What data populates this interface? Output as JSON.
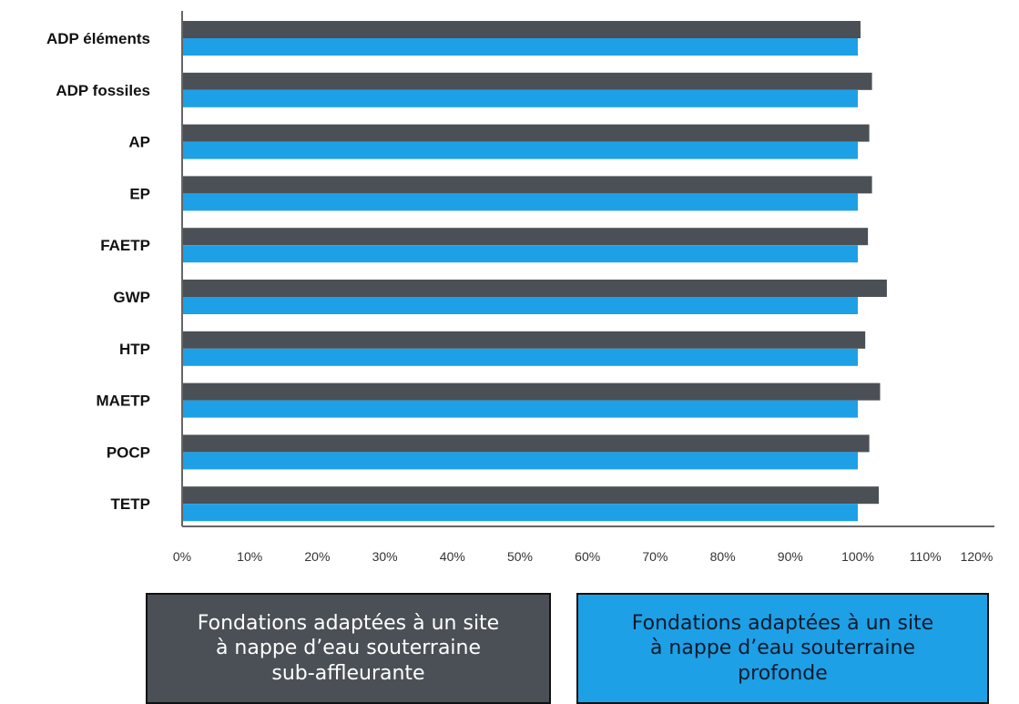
{
  "chart_data": {
    "type": "bar",
    "orientation": "horizontal",
    "categories": [
      "ADP éléments",
      "ADP fossiles",
      "AP",
      "EP",
      "FAETP",
      "GWP",
      "HTP",
      "MAETP",
      "POCP",
      "TETP"
    ],
    "series": [
      {
        "name": "Fondations adaptées à un site\nà nappe d’eau souterraine\nsub-affleurante",
        "color": "#4a5055",
        "values": [
          100.4,
          102.1,
          101.7,
          102.1,
          101.5,
          104.3,
          101.1,
          103.3,
          101.7,
          103.1
        ]
      },
      {
        "name": "Fondations adaptées à un site\nà nappe d’eau souterraine\nprofonde",
        "color": "#1ea0e6",
        "values": [
          100,
          100,
          100,
          100,
          100,
          100,
          100,
          100,
          100,
          100
        ]
      }
    ],
    "xlim": [
      0,
      120
    ],
    "xticks": [
      "0%",
      "10%",
      "20%",
      "30%",
      "40%",
      "50%",
      "60%",
      "70%",
      "80%",
      "90%",
      "100%",
      "110%",
      "120%"
    ],
    "grid": false,
    "legend": "bottom"
  }
}
